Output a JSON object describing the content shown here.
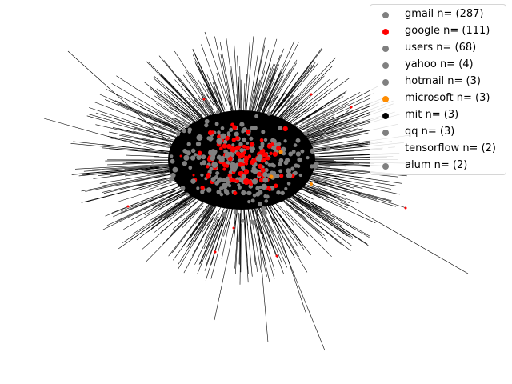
{
  "figure": {
    "legend": [
      {
        "label": "gmail n= (287)",
        "color": "#808080"
      },
      {
        "label": "google n= (111)",
        "color": "#ff0000"
      },
      {
        "label": "users n= (68)",
        "color": "#808080"
      },
      {
        "label": "yahoo n= (4)",
        "color": "#808080"
      },
      {
        "label": "hotmail n= (3)",
        "color": "#808080"
      },
      {
        "label": "microsoft n= (3)",
        "color": "#ff8c00"
      },
      {
        "label": "mit n= (3)",
        "color": "#000000"
      },
      {
        "label": "qq n= (3)",
        "color": "#808080"
      },
      {
        "label": "tensorflow n= (2)",
        "color": "#ffffff"
      },
      {
        "label": "alum n= (2)",
        "color": "#808080"
      }
    ],
    "colors": {
      "edge": "#000000",
      "node_default": "#808080",
      "node_google": "#ff0000",
      "node_microsoft": "#ff8c00",
      "background": "#ffffff"
    }
  }
}
